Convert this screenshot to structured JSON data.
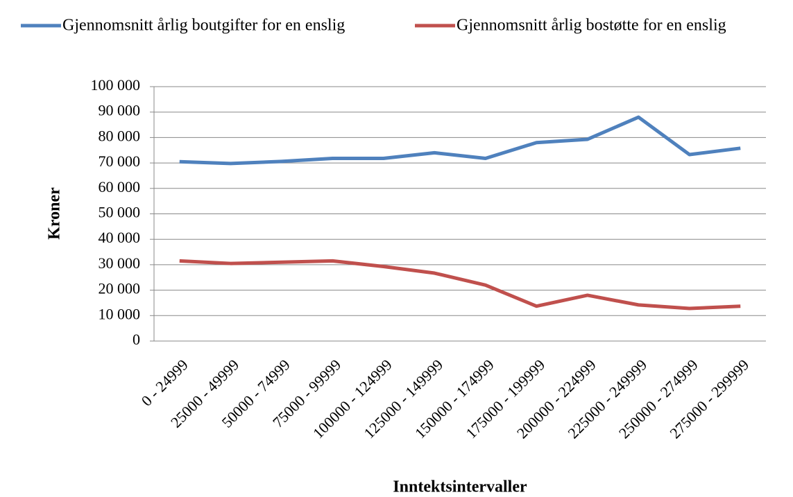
{
  "chart_data": {
    "type": "line",
    "x_label": "Inntektsintervaller",
    "y_label": "Kroner",
    "categories": [
      "0 - 24999",
      "25000 - 49999",
      "50000 - 74999",
      "75000 - 99999",
      "100000 - 124999",
      "125000 - 149999",
      "150000 - 174999",
      "175000 - 199999",
      "200000 - 224999",
      "225000 - 249999",
      "250000 - 274999",
      "275000 - 299999"
    ],
    "series": [
      {
        "name": "Gjennomsnitt årlig boutgifter for  en enslig",
        "color": "#4f81bd",
        "values": [
          70500,
          69800,
          70600,
          71800,
          71800,
          74000,
          71800,
          78000,
          79300,
          88000,
          73300,
          75800
        ]
      },
      {
        "name": "Gjennomsnitt årlig bostøtte for en enslig",
        "color": "#c0504d",
        "values": [
          31500,
          30500,
          31000,
          31500,
          29300,
          26700,
          22000,
          13700,
          18000,
          14200,
          12800,
          13700
        ]
      }
    ],
    "ylim": [
      0,
      100000
    ],
    "yticks": [
      0,
      {
        "value": 10000,
        "label": "10 000"
      },
      {
        "value": 20000,
        "label": "20 000"
      },
      {
        "value": 30000,
        "label": "30 000"
      },
      {
        "value": 40000,
        "label": "40 000"
      },
      {
        "value": 50000,
        "label": "50 000"
      },
      {
        "value": 60000,
        "label": "60 000"
      },
      {
        "value": 70000,
        "label": "70 000"
      },
      {
        "value": 80000,
        "label": "80 000"
      },
      {
        "value": 90000,
        "label": "90 000"
      },
      {
        "value": 100000,
        "label": "100 000"
      }
    ],
    "grid": true,
    "legend": "top"
  }
}
